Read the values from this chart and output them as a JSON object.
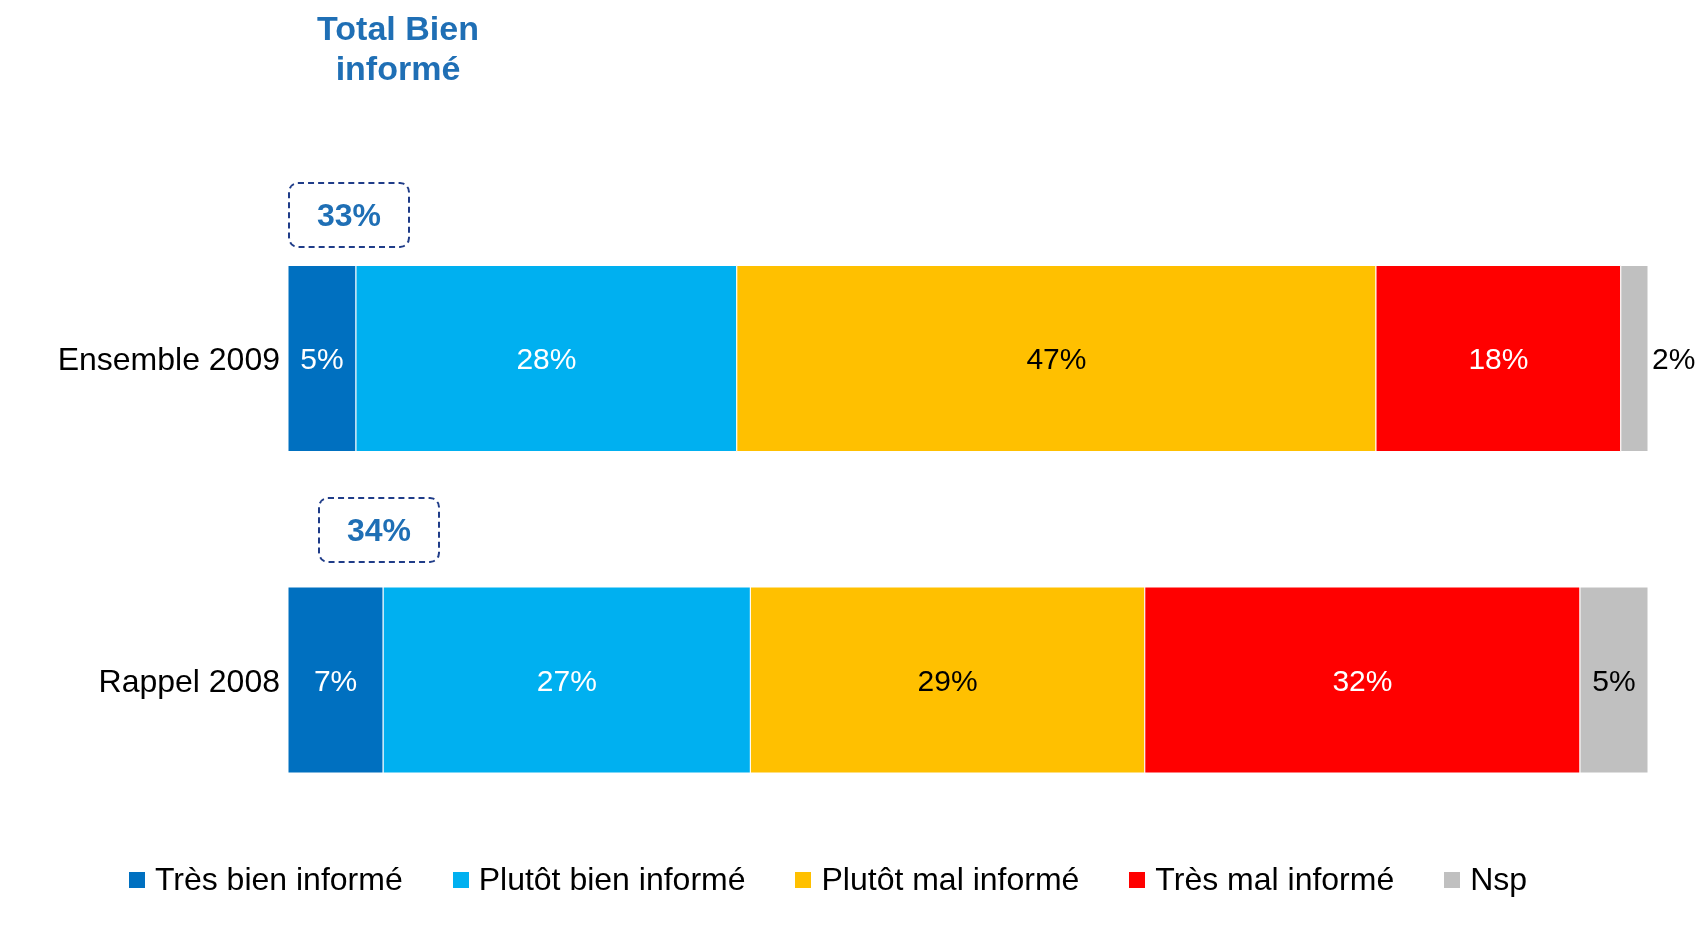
{
  "chart_data": {
    "type": "bar",
    "orientation": "horizontal",
    "stacked": true,
    "categories": [
      "Ensemble 2009",
      "Rappel 2008"
    ],
    "series": [
      {
        "name": "Très bien informé",
        "color": "#0070c0",
        "values": [
          5,
          7
        ],
        "value_labels": [
          "5%",
          "7%"
        ]
      },
      {
        "name": "Plutôt bien informé",
        "color": "#00b0f0",
        "values": [
          28,
          27
        ],
        "value_labels": [
          "28%",
          "27%"
        ]
      },
      {
        "name": "Plutôt mal informé",
        "color": "#ffc000",
        "values": [
          47,
          29
        ],
        "value_labels": [
          "47%",
          "29%"
        ]
      },
      {
        "name": "Très mal informé",
        "color": "#ff0000",
        "values": [
          18,
          32
        ],
        "value_labels": [
          "18%",
          "32%"
        ]
      },
      {
        "name": "Nsp",
        "color": "#c0c0c0",
        "values": [
          2,
          5
        ],
        "value_labels": [
          "2%",
          "5%"
        ]
      }
    ],
    "legend": "bottom",
    "tick_labels": "y",
    "annotations": [
      "Total  Bien informé",
      "33%",
      "34%"
    ]
  }
}
